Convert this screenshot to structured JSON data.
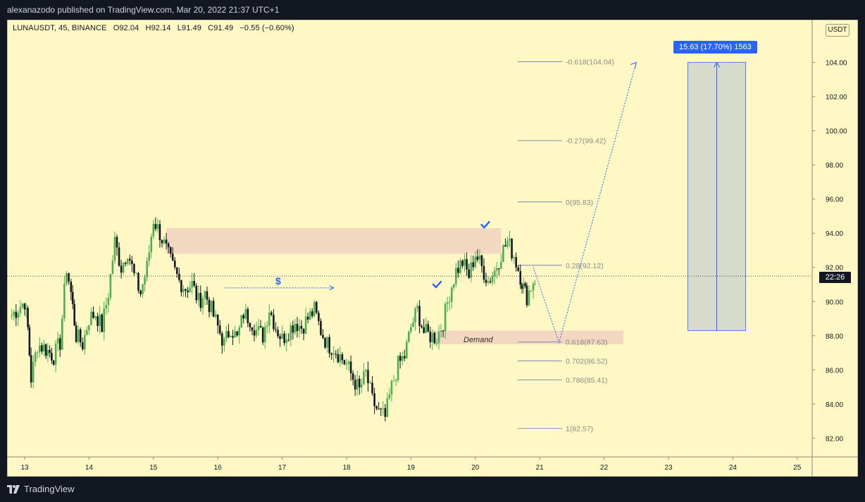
{
  "header": {
    "publisher_text": "alexanazodo published on TradingView.com, Mar 20, 2022 21:37 UTC+1"
  },
  "legend": {
    "symbol": "LUNAUSDT, 45, BINANCE",
    "open": "O92.04",
    "high": "H92.14",
    "low": "L91.49",
    "close": "C91.49",
    "change": "−0.55 (−0.60%)"
  },
  "currency_label": "USDT",
  "time_badge": "22:26",
  "measure_badge": "15.63 (17.70%) 1563",
  "demand_label": "Demand",
  "dollar_marker": "$",
  "footer": {
    "brand": "TradingView"
  },
  "colors": {
    "background": "#fff8c4",
    "up_candle": "#4caf50",
    "down_candle": "#131722",
    "zone_supply": "#f1d5c1",
    "zone_demand": "#f1d5c1",
    "measure_fill": "#d6dbcc",
    "accent_blue": "#2962ff",
    "fib_line": "#3f51b5"
  },
  "chart_data": {
    "type": "candlestick",
    "symbol": "LUNAUSDT",
    "interval": "45",
    "x_tick_labels": [
      "13",
      "14",
      "15",
      "16",
      "17",
      "18",
      "19",
      "20",
      "21",
      "22",
      "23",
      "24",
      "25"
    ],
    "y_tick_labels": [
      "82.00",
      "84.00",
      "86.00",
      "88.00",
      "90.00",
      "92.00",
      "94.00",
      "96.00",
      "98.00",
      "100.00",
      "102.00",
      "104.00"
    ],
    "ylim": [
      80.9,
      106.5
    ],
    "price_path": [
      [
        12.8,
        89.2
      ],
      [
        13.0,
        90.0
      ],
      [
        13.05,
        88.4
      ],
      [
        13.1,
        85.5
      ],
      [
        13.2,
        87.5
      ],
      [
        13.3,
        87.3
      ],
      [
        13.45,
        86.8
      ],
      [
        13.55,
        87.6
      ],
      [
        13.65,
        92.0
      ],
      [
        13.72,
        90.5
      ],
      [
        13.8,
        88.0
      ],
      [
        13.9,
        87.5
      ],
      [
        14.0,
        89.0
      ],
      [
        14.1,
        89.3
      ],
      [
        14.2,
        88.5
      ],
      [
        14.3,
        90.5
      ],
      [
        14.4,
        93.5
      ],
      [
        14.5,
        92.0
      ],
      [
        14.6,
        93.0
      ],
      [
        14.7,
        91.5
      ],
      [
        14.8,
        90.5
      ],
      [
        14.9,
        92.0
      ],
      [
        15.0,
        94.8
      ],
      [
        15.1,
        94.0
      ],
      [
        15.2,
        93.0
      ],
      [
        15.3,
        92.0
      ],
      [
        15.4,
        91.2
      ],
      [
        15.5,
        90.8
      ],
      [
        15.6,
        91.0
      ],
      [
        15.7,
        90.0
      ],
      [
        15.8,
        90.5
      ],
      [
        15.9,
        89.5
      ],
      [
        16.0,
        88.5
      ],
      [
        16.1,
        87.5
      ],
      [
        16.2,
        88.5
      ],
      [
        16.3,
        87.8
      ],
      [
        16.4,
        89.3
      ],
      [
        16.5,
        89.0
      ],
      [
        16.6,
        88.3
      ],
      [
        16.7,
        88.0
      ],
      [
        16.8,
        89.6
      ],
      [
        16.9,
        88.5
      ],
      [
        17.0,
        87.8
      ],
      [
        17.1,
        88.3
      ],
      [
        17.2,
        88.8
      ],
      [
        17.3,
        88.5
      ],
      [
        17.4,
        89.0
      ],
      [
        17.5,
        89.5
      ],
      [
        17.6,
        88.3
      ],
      [
        17.7,
        87.5
      ],
      [
        17.8,
        87.3
      ],
      [
        17.9,
        86.8
      ],
      [
        18.0,
        86.3
      ],
      [
        18.1,
        85.5
      ],
      [
        18.2,
        84.8
      ],
      [
        18.3,
        85.8
      ],
      [
        18.4,
        84.2
      ],
      [
        18.5,
        83.5
      ],
      [
        18.6,
        83.2
      ],
      [
        18.7,
        85.0
      ],
      [
        18.8,
        86.3
      ],
      [
        18.9,
        86.8
      ],
      [
        19.0,
        88.5
      ],
      [
        19.1,
        89.5
      ],
      [
        19.2,
        88.2
      ],
      [
        19.3,
        88.0
      ],
      [
        19.4,
        87.9
      ],
      [
        19.5,
        88.8
      ],
      [
        19.6,
        90.5
      ],
      [
        19.7,
        91.8
      ],
      [
        19.8,
        92.3
      ],
      [
        19.9,
        91.5
      ],
      [
        20.0,
        92.8
      ],
      [
        20.1,
        92.0
      ],
      [
        20.2,
        91.2
      ],
      [
        20.3,
        91.8
      ],
      [
        20.4,
        92.8
      ],
      [
        20.5,
        93.5
      ],
      [
        20.6,
        92.7
      ],
      [
        20.7,
        91.5
      ],
      [
        20.75,
        90.8
      ],
      [
        20.8,
        90.3
      ],
      [
        20.9,
        91.2
      ],
      [
        20.95,
        91.5
      ]
    ],
    "zones": [
      {
        "name": "supply",
        "x_from": 15.2,
        "x_to": 20.4,
        "y_from": 92.8,
        "y_to": 94.3
      },
      {
        "name": "demand",
        "x_from": 19.35,
        "x_to": 22.3,
        "y_from": 87.5,
        "y_to": 88.3
      }
    ],
    "fib_levels": [
      {
        "label": "-0.618(104.04)",
        "value": 104.04
      },
      {
        "label": "-0.27(99.42)",
        "value": 99.42
      },
      {
        "label": "0(95.83)",
        "value": 95.83
      },
      {
        "label": "0.28(92.12)",
        "value": 92.12
      },
      {
        "label": "0.618(87.63)",
        "value": 87.63
      },
      {
        "label": "0.702(86.52)",
        "value": 86.52
      },
      {
        "label": "0.786(85.41)",
        "value": 85.41
      },
      {
        "label": "1(82.57)",
        "value": 82.57
      }
    ],
    "projection_path": [
      [
        20.9,
        92.0
      ],
      [
        21.3,
        87.6
      ],
      [
        22.5,
        104.0
      ]
    ],
    "dollar_arrow": {
      "x_from": 16.1,
      "x_to": 17.8,
      "y": 90.8
    },
    "checkmarks": [
      [
        19.4,
        91.0
      ],
      [
        20.15,
        94.5
      ]
    ],
    "last_price": 91.49,
    "measure": {
      "x_from": 23.3,
      "x_to": 24.2,
      "y_from": 88.3,
      "y_to": 104.0
    }
  }
}
